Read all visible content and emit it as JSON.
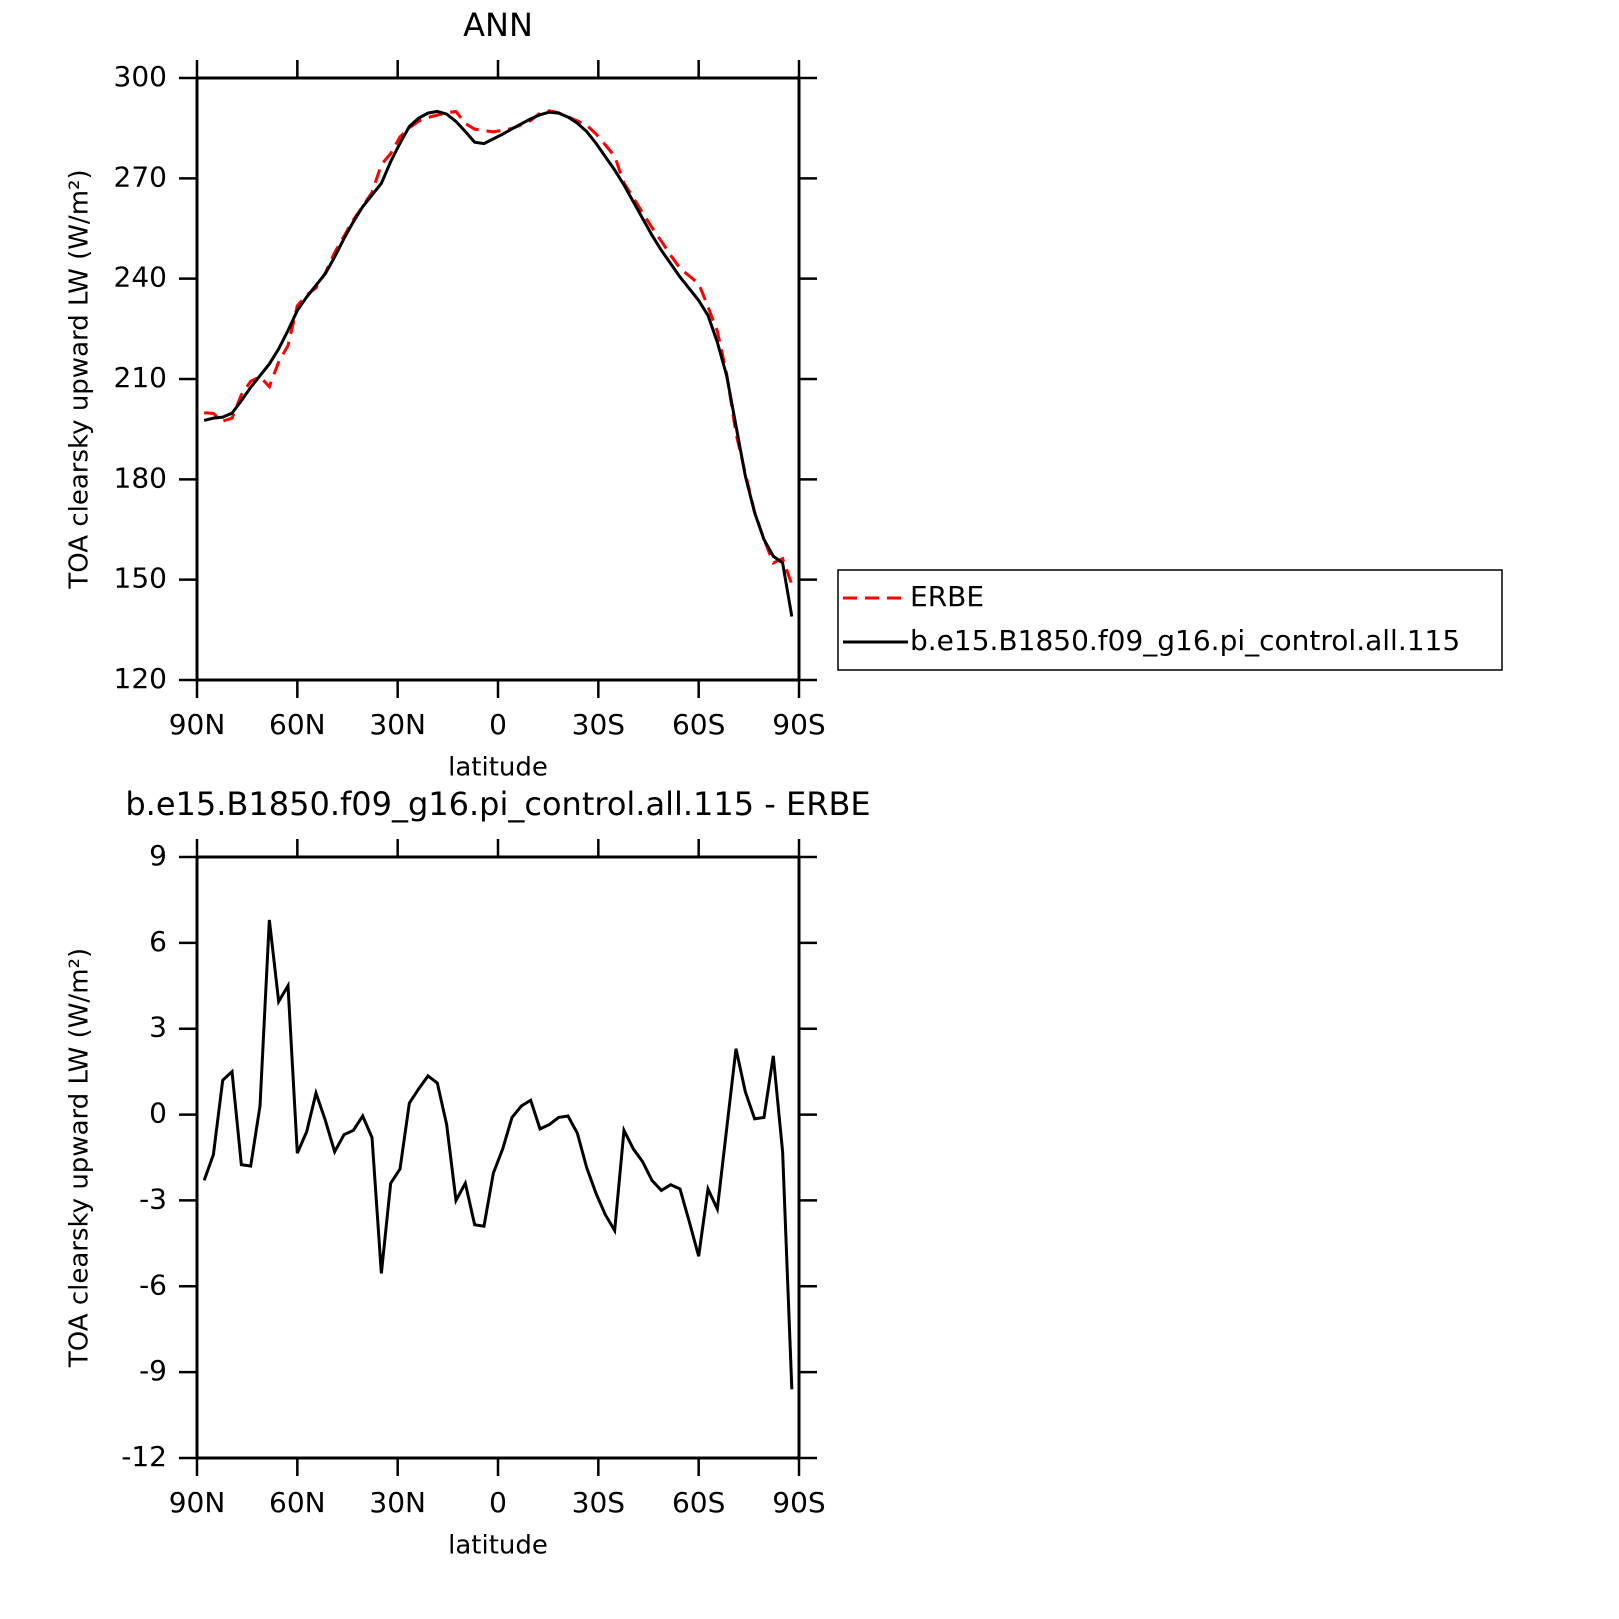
{
  "chart_data": [
    {
      "type": "line",
      "title": "ANN",
      "xlabel": "latitude",
      "ylabel": "TOA clearsky upward LW (W/m²)",
      "x": [
        87.86,
        85.1,
        82.31,
        79.53,
        76.74,
        73.95,
        71.16,
        68.37,
        65.58,
        62.79,
        60.0,
        57.21,
        54.42,
        51.63,
        48.84,
        46.04,
        43.25,
        40.46,
        37.67,
        34.88,
        32.09,
        29.3,
        26.51,
        23.72,
        20.93,
        18.14,
        15.35,
        12.56,
        9.77,
        6.98,
        4.19,
        1.4,
        -1.4,
        -4.19,
        -6.98,
        -9.77,
        -12.56,
        -15.35,
        -18.14,
        -20.93,
        -23.72,
        -26.51,
        -29.3,
        -32.09,
        -34.88,
        -37.67,
        -40.46,
        -43.25,
        -46.04,
        -48.84,
        -51.63,
        -54.42,
        -57.21,
        -60.0,
        -62.79,
        -65.58,
        -68.37,
        -71.16,
        -73.95,
        -76.74,
        -79.53,
        -82.31,
        -85.1,
        -87.86
      ],
      "series": [
        {
          "name": "ERBE",
          "color": "#ff0000",
          "linestyle": "dashed",
          "values": [
            199.9,
            199.7,
            197.4,
            198.3,
            205.3,
            209.3,
            210.7,
            207.7,
            215.1,
            220.0,
            231.9,
            235.1,
            237.3,
            241.7,
            247.8,
            252.7,
            257.6,
            261.6,
            265.8,
            274.1,
            277.4,
            282.4,
            285.1,
            287.1,
            288.2,
            288.9,
            289.6,
            290.0,
            286.4,
            284.7,
            284.3,
            283.9,
            284.4,
            284.9,
            286.0,
            287.3,
            289.5,
            290.2,
            289.6,
            288.4,
            287.2,
            285.9,
            283.3,
            280.0,
            276.6,
            268.6,
            264.2,
            259.7,
            255.3,
            251.2,
            247.0,
            243.1,
            240.8,
            238.5,
            231.6,
            224.3,
            211.5,
            193.7,
            181.8,
            170.2,
            162.1,
            155.0,
            156.3,
            148.6
          ]
        },
        {
          "name": "b.e15.B1850.f09_g16.pi_control.all.115",
          "color": "#000000",
          "linestyle": "solid",
          "values": [
            197.6,
            198.3,
            198.6,
            199.8,
            203.5,
            207.5,
            211,
            214.5,
            219,
            224.5,
            230.5,
            234.5,
            238,
            241.5,
            246.5,
            252,
            257,
            261.5,
            265,
            268.5,
            275,
            280.5,
            285.5,
            288,
            289.5,
            290,
            289.2,
            287,
            284,
            280.8,
            280.4,
            281.8,
            283.2,
            284.8,
            286.3,
            287.8,
            289,
            289.8,
            289.5,
            288.3,
            286.5,
            284,
            280.5,
            276.5,
            272.5,
            268,
            263,
            258,
            253,
            248.5,
            244.5,
            240.5,
            237,
            233.5,
            229,
            221,
            211,
            196,
            181,
            170,
            162,
            157,
            155,
            139
          ]
        }
      ],
      "xlim": [
        90,
        -90
      ],
      "xticks": [
        {
          "value": 90,
          "label": "90N"
        },
        {
          "value": 60,
          "label": "60N"
        },
        {
          "value": 30,
          "label": "30N"
        },
        0,
        {
          "value": -30,
          "label": "30S"
        },
        {
          "value": -60,
          "label": "60S"
        },
        {
          "value": -90,
          "label": "90S"
        }
      ],
      "ylim": [
        120,
        300
      ],
      "yticks": [
        120,
        150,
        180,
        210,
        240,
        270,
        300
      ],
      "legend": "right"
    },
    {
      "type": "line",
      "title": "b.e15.B1850.f09_g16.pi_control.all.115 - ERBE",
      "xlabel": "latitude",
      "ylabel": "TOA clearsky upward LW (W/m²)",
      "x": [
        87.86,
        85.1,
        82.31,
        79.53,
        76.74,
        73.95,
        71.16,
        68.37,
        65.58,
        62.79,
        60.0,
        57.21,
        54.42,
        51.63,
        48.84,
        46.04,
        43.25,
        40.46,
        37.67,
        34.88,
        32.09,
        29.3,
        26.51,
        23.72,
        20.93,
        18.14,
        15.35,
        12.56,
        9.77,
        6.98,
        4.19,
        1.4,
        -1.4,
        -4.19,
        -6.98,
        -9.77,
        -12.56,
        -15.35,
        -18.14,
        -20.93,
        -23.72,
        -26.51,
        -29.3,
        -32.09,
        -34.88,
        -37.67,
        -40.46,
        -43.25,
        -46.04,
        -48.84,
        -51.63,
        -54.42,
        -57.21,
        -60.0,
        -62.79,
        -65.58,
        -68.37,
        -71.16,
        -73.95,
        -76.74,
        -79.53,
        -82.31,
        -85.1,
        -87.86
      ],
      "series": [
        {
          "color": "#000000",
          "linestyle": "solid",
          "values": [
            -2.3,
            -1.4,
            1.2,
            1.5,
            -1.75,
            -1.8,
            0.3,
            6.8,
            3.95,
            4.5,
            -1.35,
            -0.6,
            0.75,
            -0.2,
            -1.3,
            -0.7,
            -0.55,
            -0.05,
            -0.8,
            -5.55,
            -2.4,
            -1.9,
            0.4,
            0.9,
            1.35,
            1.1,
            -0.35,
            -3.0,
            -2.4,
            -3.85,
            -3.9,
            -2.05,
            -1.2,
            -0.1,
            0.3,
            0.5,
            -0.5,
            -0.35,
            -0.1,
            -0.05,
            -0.65,
            -1.85,
            -2.75,
            -3.5,
            -4.05,
            -0.55,
            -1.2,
            -1.65,
            -2.3,
            -2.65,
            -2.45,
            -2.6,
            -3.75,
            -4.95,
            -2.6,
            -3.3,
            -0.5,
            2.3,
            0.8,
            -0.15,
            -0.1,
            2.05,
            -1.3,
            -9.6
          ]
        }
      ],
      "xlim": [
        90,
        -90
      ],
      "xticks": [
        {
          "value": 90,
          "label": "90N"
        },
        {
          "value": 60,
          "label": "60N"
        },
        {
          "value": 30,
          "label": "30N"
        },
        0,
        {
          "value": -30,
          "label": "30S"
        },
        {
          "value": -60,
          "label": "60S"
        },
        {
          "value": -90,
          "label": "90S"
        }
      ],
      "ylim": [
        -12,
        9
      ],
      "yticks": [
        -12,
        -9,
        -6,
        -3,
        0,
        3,
        6,
        9
      ]
    }
  ]
}
